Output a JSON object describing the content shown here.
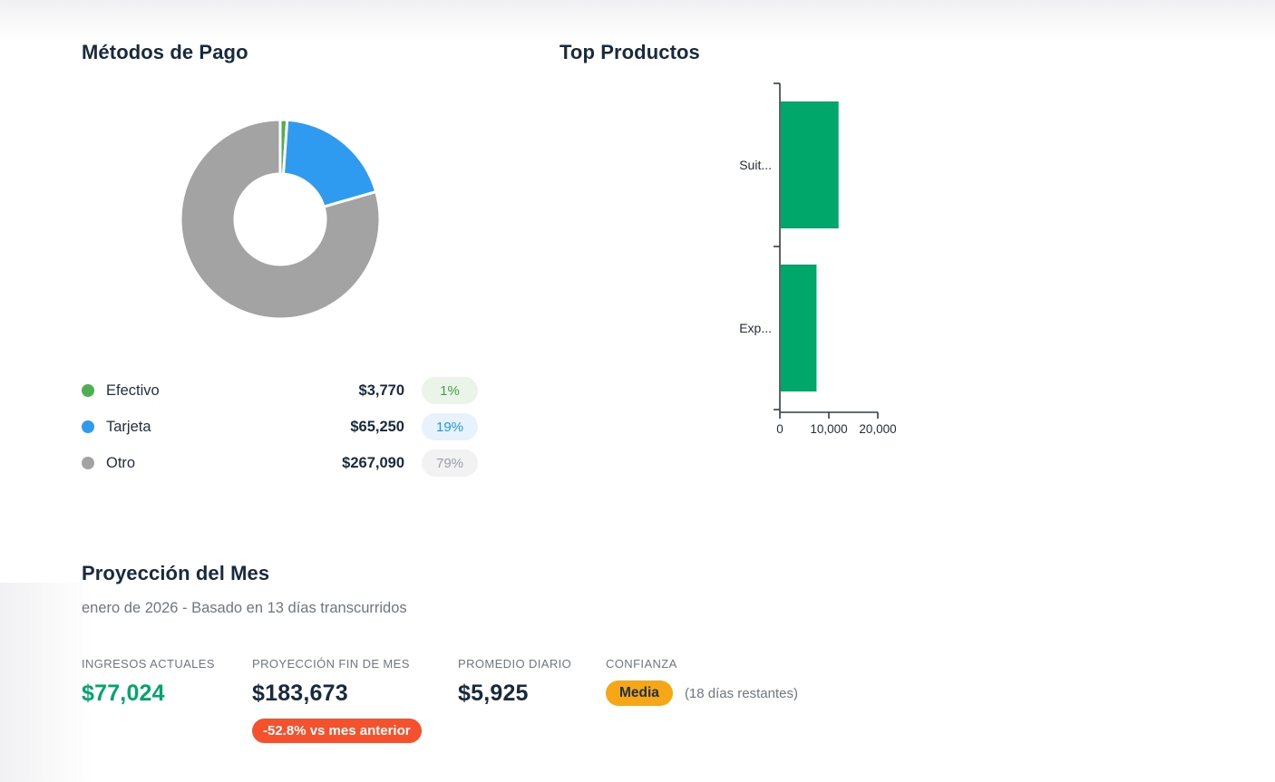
{
  "payment_methods": {
    "title": "Métodos de Pago",
    "legend": [
      {
        "label": "Efectivo",
        "amount": "$3,770",
        "percent": "1%",
        "color": "#4caf50",
        "badge_bg": "#eaf4e8",
        "badge_text": "#43a047"
      },
      {
        "label": "Tarjeta",
        "amount": "$65,250",
        "percent": "19%",
        "color": "#2e9af0",
        "badge_bg": "#e7f2fd",
        "badge_text": "#2196f3"
      },
      {
        "label": "Otro",
        "amount": "$267,090",
        "percent": "79%",
        "color": "#a3a3a3",
        "badge_bg": "#f2f2f3",
        "badge_text": "#9aa0a6"
      }
    ]
  },
  "top_products": {
    "title": "Top Productos"
  },
  "projection": {
    "title": "Proyección del Mes",
    "subtitle": "enero de 2026 - Basado en 13 días transcurridos",
    "stats": [
      {
        "label": "INGRESOS ACTUALES",
        "value": "$77,024"
      },
      {
        "label": "PROYECCIÓN FIN DE MES",
        "value": "$183,673",
        "badge": "-52.8% vs mes anterior",
        "badge_bg": "#f4512c"
      },
      {
        "label": "PROMEDIO DIARIO",
        "value": "$5,925"
      },
      {
        "label": "CONFIANZA",
        "badge": "Media",
        "badge_bg": "#f7a716",
        "note": "(18 días restantes)"
      }
    ]
  },
  "colors": {
    "money_green": "#00a76b",
    "heading": "#182a3d",
    "axis": "#333c47"
  },
  "chart_data": [
    {
      "type": "pie",
      "title": "Métodos de Pago",
      "labels": [
        "Efectivo",
        "Tarjeta",
        "Otro"
      ],
      "values": [
        3770,
        65250,
        267090
      ],
      "percents": [
        1,
        19,
        79
      ],
      "colors": [
        "#4caf50",
        "#2e9af0",
        "#a3a3a3"
      ],
      "donut": true,
      "inner_radius_ratio": 0.45,
      "start_angle": "top",
      "direction": "clockwise",
      "legend_position": "bottom"
    },
    {
      "type": "bar",
      "title": "Top Productos",
      "orientation": "horizontal",
      "categories": [
        "Suit...",
        "Exp..."
      ],
      "values": [
        11800,
        7300
      ],
      "xlim": [
        0,
        20000
      ],
      "xticks": [
        0,
        10000,
        20000
      ],
      "xtick_labels": [
        "0",
        "10,000",
        "20,000"
      ],
      "bar_color": "#00a76b",
      "grid": false,
      "legend": false
    }
  ]
}
